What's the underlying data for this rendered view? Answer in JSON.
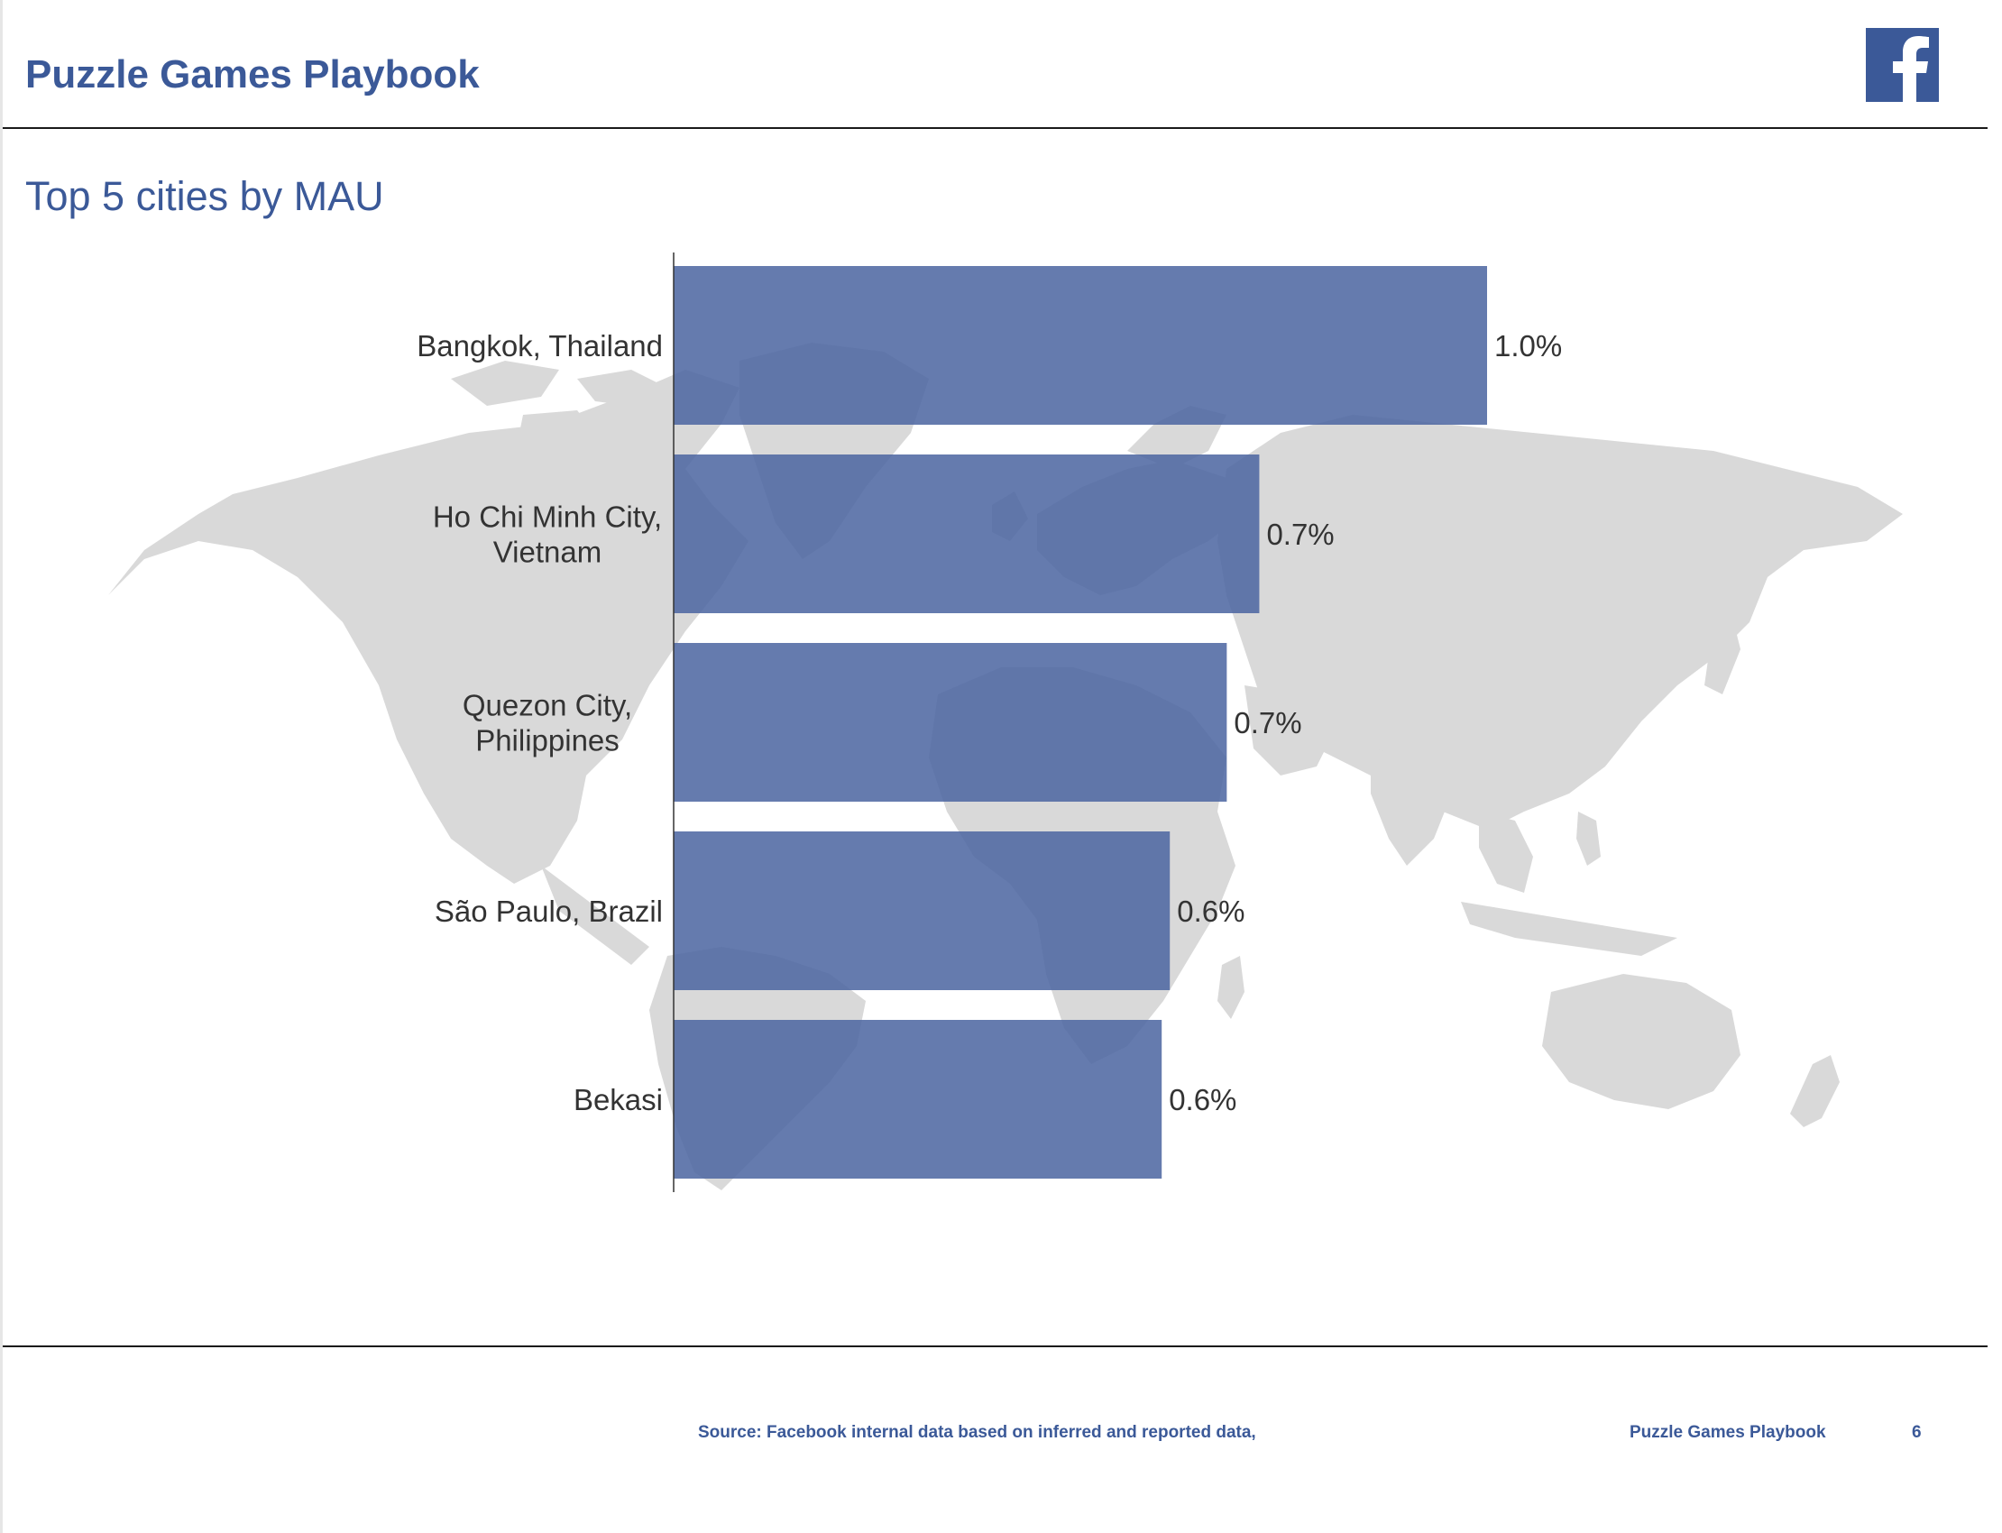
{
  "header": {
    "title": "Puzzle Games Playbook",
    "logo_icon": "facebook-logo-icon"
  },
  "colors": {
    "brand": "#3b5998",
    "bar": "#4a64a0",
    "map": "#d9d9d9",
    "text": "#333333"
  },
  "chart_data": {
    "type": "bar",
    "orientation": "horizontal",
    "title": "Top 5 cities by MAU",
    "categories": [
      [
        "Bangkok, Thailand"
      ],
      [
        "Ho Chi Minh City,",
        "Vietnam"
      ],
      [
        "Quezon City,",
        "Philippines"
      ],
      [
        "São Paulo, Brazil"
      ],
      [
        "Bekasi"
      ]
    ],
    "values": [
      1.0,
      0.72,
      0.68,
      0.61,
      0.6
    ],
    "data_labels": [
      "1.0%",
      "0.7%",
      "0.7%",
      "0.6%",
      "0.6%"
    ],
    "xlim": [
      0,
      1.0
    ],
    "grid": false,
    "background": "world-map"
  },
  "footer": {
    "source": "Source: Facebook internal data based on inferred and reported data,",
    "doc_title": "Puzzle Games Playbook",
    "page_number": "6"
  }
}
